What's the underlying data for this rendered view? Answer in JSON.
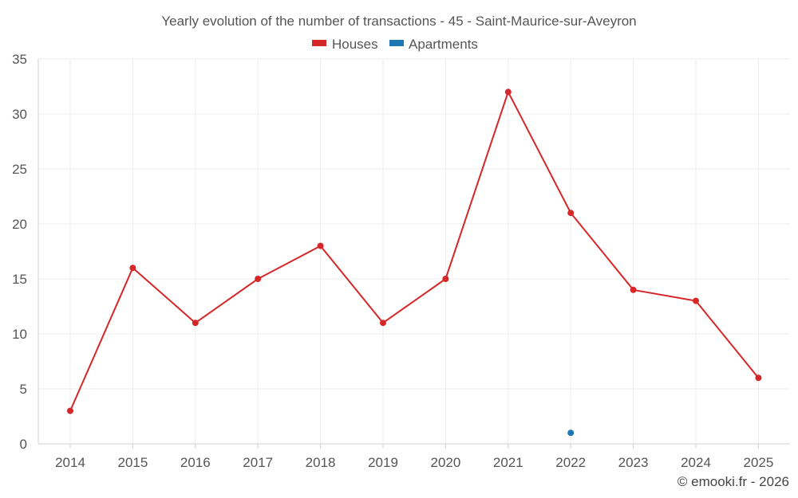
{
  "chart_data": {
    "type": "line",
    "title": "Yearly evolution of the number of transactions - 45 - Saint-Maurice-sur-Aveyron",
    "categories": [
      "2014",
      "2015",
      "2016",
      "2017",
      "2018",
      "2019",
      "2020",
      "2021",
      "2022",
      "2023",
      "2024",
      "2025"
    ],
    "series": [
      {
        "name": "Houses",
        "color": "#d62728",
        "values": [
          3,
          16,
          11,
          15,
          18,
          11,
          15,
          32,
          21,
          14,
          13,
          6
        ]
      },
      {
        "name": "Apartments",
        "color": "#1f77b4",
        "values": [
          null,
          null,
          null,
          null,
          null,
          null,
          null,
          null,
          1,
          null,
          null,
          null
        ]
      }
    ],
    "y_ticks": [
      "0",
      "5",
      "10",
      "15",
      "20",
      "25",
      "30",
      "35"
    ],
    "ylim": [
      0,
      35
    ],
    "xlabel": "",
    "ylabel": "",
    "grid": true,
    "legend_position": "top-center"
  },
  "credit": "© emooki.fr - 2026"
}
